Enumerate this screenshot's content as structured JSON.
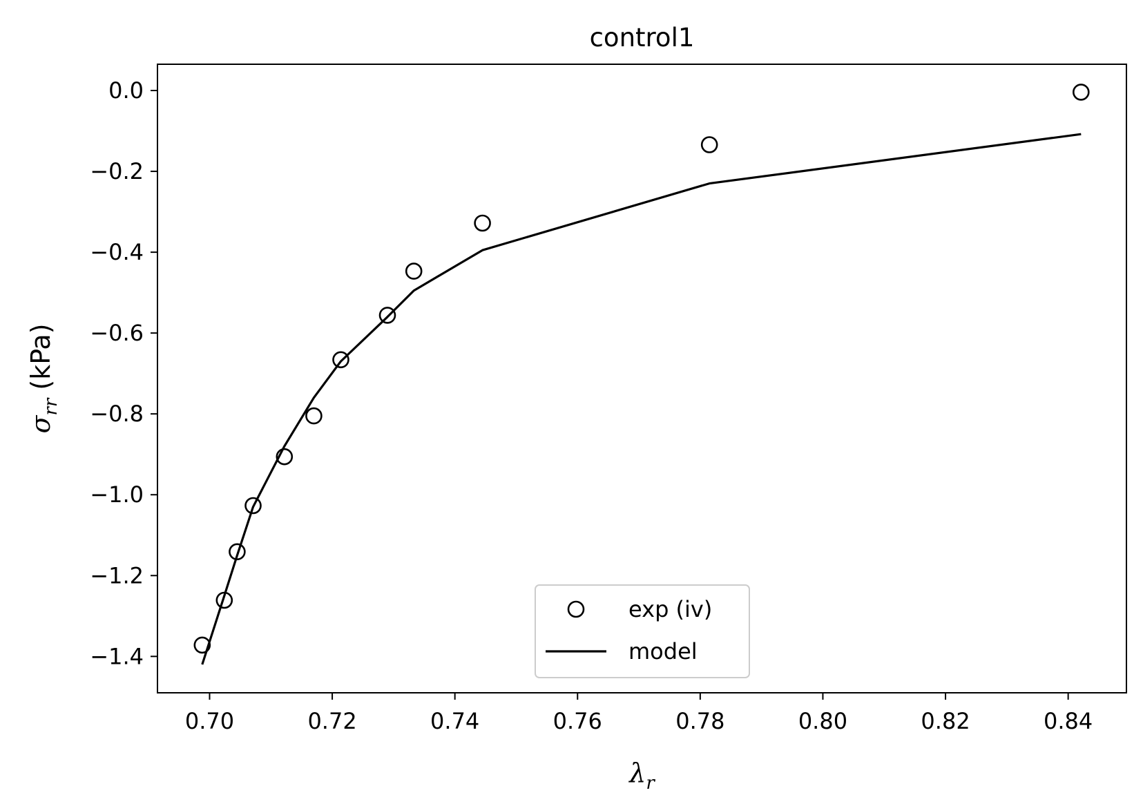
{
  "chart_data": {
    "type": "scatter",
    "title": "control1",
    "xlabel": {
      "main": "λ",
      "sub": "r"
    },
    "ylabel": {
      "main": "σ",
      "sub": "rr",
      "unit": " (kPa)"
    },
    "xlim": [
      0.6915,
      0.8495
    ],
    "ylim": [
      -1.49,
      0.065
    ],
    "xticks": [
      0.7,
      0.72,
      0.74,
      0.76,
      0.78,
      0.8,
      0.82,
      0.84
    ],
    "xtick_labels": [
      "0.70",
      "0.72",
      "0.74",
      "0.76",
      "0.78",
      "0.80",
      "0.82",
      "0.84"
    ],
    "yticks": [
      0.0,
      -0.2,
      -0.4,
      -0.6,
      -0.8,
      -1.0,
      -1.2,
      -1.4
    ],
    "ytick_labels": [
      "0.0",
      "−0.2",
      "−0.4",
      "−0.6",
      "−0.8",
      "−1.0",
      "−1.2",
      "−1.4"
    ],
    "grid": false,
    "legend_position": "bottom-center",
    "series": [
      {
        "name": "exp (iv)",
        "kind": "markers",
        "marker": "open-circle",
        "color": "#000000",
        "x": [
          0.6988,
          0.7024,
          0.7045,
          0.7071,
          0.7122,
          0.717,
          0.7214,
          0.729,
          0.7333,
          0.7445,
          0.7815,
          0.8421
        ],
        "y": [
          -1.372,
          -1.261,
          -1.141,
          -1.027,
          -0.906,
          -0.805,
          -0.666,
          -0.556,
          -0.447,
          -0.328,
          -0.134,
          -0.004
        ]
      },
      {
        "name": "model",
        "kind": "line",
        "color": "#000000",
        "x": [
          0.6988,
          0.7024,
          0.7045,
          0.7071,
          0.7122,
          0.717,
          0.7214,
          0.729,
          0.7333,
          0.7445,
          0.7815,
          0.8421
        ],
        "y": [
          -1.42,
          -1.25,
          -1.15,
          -1.03,
          -0.88,
          -0.76,
          -0.67,
          -0.56,
          -0.495,
          -0.395,
          -0.23,
          -0.108
        ]
      }
    ]
  }
}
